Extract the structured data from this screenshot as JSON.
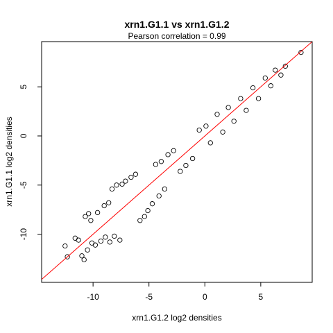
{
  "chart_data": {
    "type": "scatter",
    "title": "xrn1.G1.1 vs xrn1.G1.2",
    "subtitle": "Pearson correlation =  0.99",
    "xlabel": "xrn1.G1.2 log2 densities",
    "ylabel": "xrn1.G1.1 log2 densities",
    "xlim": [
      -14.6,
      9.6
    ],
    "ylim": [
      -14.9,
      9.6
    ],
    "xticks": [
      -10,
      -5,
      0,
      5
    ],
    "yticks": [
      -10,
      -5,
      0,
      5
    ],
    "xtick_labels": [
      "-10",
      "-5",
      "0",
      "5"
    ],
    "ytick_labels": [
      "-10",
      "-5",
      "0",
      "5"
    ],
    "grid": false,
    "reference_line": {
      "slope": 1,
      "intercept": 0,
      "color": "#ff0000"
    },
    "point_color": "#000000",
    "series": [
      {
        "points": [
          [
            -12.3,
            -12.3
          ],
          [
            -12.5,
            -11.2
          ],
          [
            -11.0,
            -12.2
          ],
          [
            -10.8,
            -12.6
          ],
          [
            -11.3,
            -10.6
          ],
          [
            -11.6,
            -10.4
          ],
          [
            -10.5,
            -11.6
          ],
          [
            -10.1,
            -10.9
          ],
          [
            -9.8,
            -11.1
          ],
          [
            -9.3,
            -10.7
          ],
          [
            -8.9,
            -10.3
          ],
          [
            -8.5,
            -10.8
          ],
          [
            -8.1,
            -10.2
          ],
          [
            -7.6,
            -10.6
          ],
          [
            -10.7,
            -8.2
          ],
          [
            -10.4,
            -7.9
          ],
          [
            -10.2,
            -8.6
          ],
          [
            -9.6,
            -7.8
          ],
          [
            -9.0,
            -7.1
          ],
          [
            -8.6,
            -6.8
          ],
          [
            -8.3,
            -5.4
          ],
          [
            -7.9,
            -5.0
          ],
          [
            -7.4,
            -4.9
          ],
          [
            -7.1,
            -4.6
          ],
          [
            -6.6,
            -4.2
          ],
          [
            -6.2,
            -3.9
          ],
          [
            -5.8,
            -8.6
          ],
          [
            -5.4,
            -8.2
          ],
          [
            -5.1,
            -7.6
          ],
          [
            -4.7,
            -6.9
          ],
          [
            -4.1,
            -6.1
          ],
          [
            -3.6,
            -5.4
          ],
          [
            -4.4,
            -2.9
          ],
          [
            -3.9,
            -2.6
          ],
          [
            -3.3,
            -1.9
          ],
          [
            -2.8,
            -1.5
          ],
          [
            -2.2,
            -3.6
          ],
          [
            -1.7,
            -3.0
          ],
          [
            -1.1,
            -2.3
          ],
          [
            -0.5,
            0.6
          ],
          [
            0.1,
            1.0
          ],
          [
            0.5,
            -0.7
          ],
          [
            1.1,
            2.2
          ],
          [
            1.6,
            0.4
          ],
          [
            2.1,
            2.9
          ],
          [
            2.6,
            1.5
          ],
          [
            3.2,
            3.8
          ],
          [
            3.7,
            2.6
          ],
          [
            4.3,
            4.9
          ],
          [
            4.8,
            3.8
          ],
          [
            5.4,
            5.9
          ],
          [
            5.9,
            5.1
          ],
          [
            6.3,
            6.7
          ],
          [
            6.8,
            6.2
          ],
          [
            7.2,
            7.1
          ],
          [
            8.6,
            8.5
          ]
        ]
      }
    ]
  }
}
